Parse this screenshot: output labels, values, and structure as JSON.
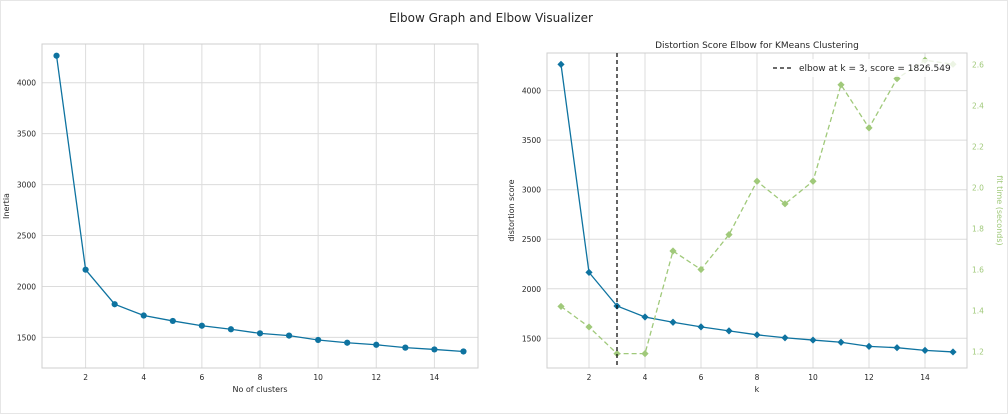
{
  "figure": {
    "suptitle": "Elbow Graph and Elbow Visualizer"
  },
  "chart_data": [
    {
      "type": "line",
      "title": "",
      "xlabel": "No of clusters",
      "ylabel": "Inertia",
      "xlim": [
        0.5,
        15.5
      ],
      "ylim": [
        1200,
        4380
      ],
      "xticks": [
        2,
        4,
        6,
        8,
        10,
        12,
        14
      ],
      "yticks": [
        1500,
        2000,
        2500,
        3000,
        3500,
        4000
      ],
      "grid": true,
      "series": [
        {
          "color": "#0e73a0",
          "marker": "circle",
          "x": [
            1,
            2,
            3,
            4,
            5,
            6,
            7,
            8,
            9,
            10,
            11,
            12,
            13,
            14,
            15
          ],
          "y": [
            4265,
            2165,
            1826,
            1715,
            1662,
            1615,
            1580,
            1540,
            1518,
            1475,
            1448,
            1428,
            1400,
            1382,
            1362
          ]
        }
      ]
    },
    {
      "type": "line",
      "title": "Distortion Score Elbow for KMeans Clustering",
      "xlabel": "k",
      "ylabel": "distortion score",
      "y2label": "fit time (seconds)",
      "xlim": [
        0.5,
        15.5
      ],
      "ylim": [
        1200,
        4380
      ],
      "y2lim": [
        1.12,
        2.655
      ],
      "xticks": [
        2,
        4,
        6,
        8,
        10,
        12,
        14
      ],
      "yticks": [
        1500,
        2000,
        2500,
        3000,
        3500,
        4000
      ],
      "y2ticks": [
        1.2,
        1.4,
        1.6,
        1.8,
        2.0,
        2.2,
        2.4,
        2.6
      ],
      "grid": true,
      "elbow_k": 3,
      "legend": {
        "placement": "top-right",
        "label": "elbow at k = 3, score = 1826.549"
      },
      "series": [
        {
          "axis": "left",
          "color": "#0e73a0",
          "marker": "diamond",
          "x": [
            1,
            2,
            3,
            4,
            5,
            6,
            7,
            8,
            9,
            10,
            11,
            12,
            13,
            14,
            15
          ],
          "y": [
            4265,
            2165,
            1826,
            1715,
            1662,
            1615,
            1575,
            1535,
            1505,
            1482,
            1460,
            1418,
            1405,
            1378,
            1362
          ]
        },
        {
          "axis": "right",
          "color": "#a0c97a",
          "marker": "diamond",
          "dashed": true,
          "x": [
            1,
            2,
            3,
            4,
            5,
            6,
            7,
            8,
            9,
            10,
            11,
            12,
            13,
            14,
            15
          ],
          "y": [
            1.42,
            1.32,
            1.19,
            1.19,
            1.69,
            1.6,
            1.77,
            2.03,
            1.92,
            2.03,
            2.5,
            2.29,
            2.53,
            2.62,
            2.6
          ]
        }
      ]
    }
  ]
}
